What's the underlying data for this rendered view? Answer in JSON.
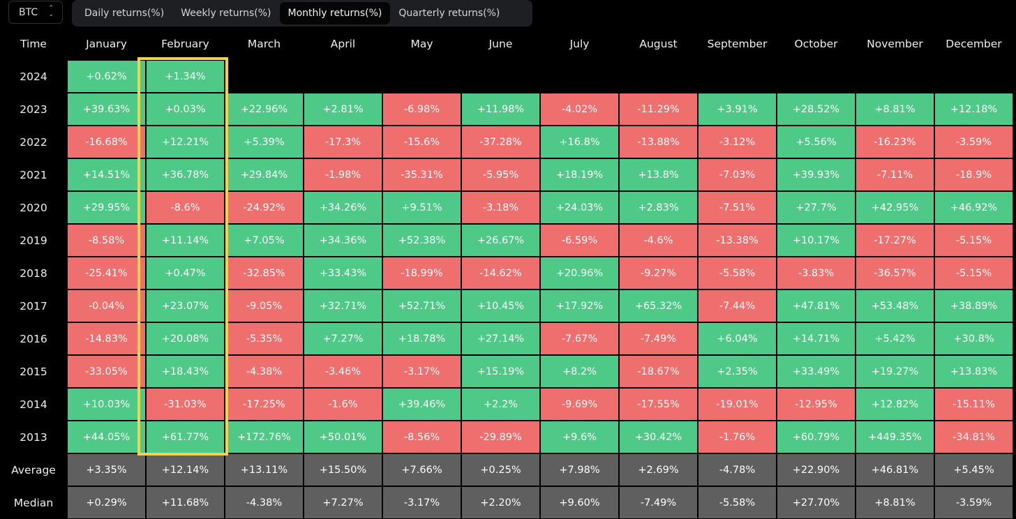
{
  "symbol_select": {
    "value": "BTC"
  },
  "tabs": [
    {
      "label": "Daily returns(%)",
      "active": false
    },
    {
      "label": "Weekly returns(%)",
      "active": false
    },
    {
      "label": "Monthly returns(%)",
      "active": true
    },
    {
      "label": "Quarterly returns(%)",
      "active": false
    }
  ],
  "table": {
    "time_header": "Time",
    "months": [
      "January",
      "February",
      "March",
      "April",
      "May",
      "June",
      "July",
      "August",
      "September",
      "October",
      "November",
      "December"
    ],
    "highlighted_month": "February",
    "rows": [
      {
        "year": "2024",
        "values": [
          "+0.62%",
          "+1.34%",
          "",
          "",
          "",
          "",
          "",
          "",
          "",
          "",
          "",
          ""
        ]
      },
      {
        "year": "2023",
        "values": [
          "+39.63%",
          "+0.03%",
          "+22.96%",
          "+2.81%",
          "-6.98%",
          "+11.98%",
          "-4.02%",
          "-11.29%",
          "+3.91%",
          "+28.52%",
          "+8.81%",
          "+12.18%"
        ]
      },
      {
        "year": "2022",
        "values": [
          "-16.68%",
          "+12.21%",
          "+5.39%",
          "-17.3%",
          "-15.6%",
          "-37.28%",
          "+16.8%",
          "-13.88%",
          "-3.12%",
          "+5.56%",
          "-16.23%",
          "-3.59%"
        ]
      },
      {
        "year": "2021",
        "values": [
          "+14.51%",
          "+36.78%",
          "+29.84%",
          "-1.98%",
          "-35.31%",
          "-5.95%",
          "+18.19%",
          "+13.8%",
          "-7.03%",
          "+39.93%",
          "-7.11%",
          "-18.9%"
        ]
      },
      {
        "year": "2020",
        "values": [
          "+29.95%",
          "-8.6%",
          "-24.92%",
          "+34.26%",
          "+9.51%",
          "-3.18%",
          "+24.03%",
          "+2.83%",
          "-7.51%",
          "+27.7%",
          "+42.95%",
          "+46.92%"
        ]
      },
      {
        "year": "2019",
        "values": [
          "-8.58%",
          "+11.14%",
          "+7.05%",
          "+34.36%",
          "+52.38%",
          "+26.67%",
          "-6.59%",
          "-4.6%",
          "-13.38%",
          "+10.17%",
          "-17.27%",
          "-5.15%"
        ]
      },
      {
        "year": "2018",
        "values": [
          "-25.41%",
          "+0.47%",
          "-32.85%",
          "+33.43%",
          "-18.99%",
          "-14.62%",
          "+20.96%",
          "-9.27%",
          "-5.58%",
          "-3.83%",
          "-36.57%",
          "-5.15%"
        ]
      },
      {
        "year": "2017",
        "values": [
          "-0.04%",
          "+23.07%",
          "-9.05%",
          "+32.71%",
          "+52.71%",
          "+10.45%",
          "+17.92%",
          "+65.32%",
          "-7.44%",
          "+47.81%",
          "+53.48%",
          "+38.89%"
        ]
      },
      {
        "year": "2016",
        "values": [
          "-14.83%",
          "+20.08%",
          "-5.35%",
          "+7.27%",
          "+18.78%",
          "+27.14%",
          "-7.67%",
          "-7.49%",
          "+6.04%",
          "+14.71%",
          "+5.42%",
          "+30.8%"
        ]
      },
      {
        "year": "2015",
        "values": [
          "-33.05%",
          "+18.43%",
          "-4.38%",
          "-3.46%",
          "-3.17%",
          "+15.19%",
          "+8.2%",
          "-18.67%",
          "+2.35%",
          "+33.49%",
          "+19.27%",
          "+13.83%"
        ]
      },
      {
        "year": "2014",
        "values": [
          "+10.03%",
          "-31.03%",
          "-17.25%",
          "-1.6%",
          "+39.46%",
          "+2.2%",
          "-9.69%",
          "-17.55%",
          "-19.01%",
          "-12.95%",
          "+12.82%",
          "-15.11%"
        ]
      },
      {
        "year": "2013",
        "values": [
          "+44.05%",
          "+61.77%",
          "+172.76%",
          "+50.01%",
          "-8.56%",
          "-29.89%",
          "+9.6%",
          "+30.42%",
          "-1.76%",
          "+60.79%",
          "+449.35%",
          "-34.81%"
        ]
      }
    ],
    "stats": [
      {
        "label": "Average",
        "values": [
          "+3.35%",
          "+12.14%",
          "+13.11%",
          "+15.50%",
          "+7.66%",
          "+0.25%",
          "+7.98%",
          "+2.69%",
          "-4.78%",
          "+22.90%",
          "+46.81%",
          "+5.45%"
        ]
      },
      {
        "label": "Median",
        "values": [
          "+0.29%",
          "+11.68%",
          "-4.38%",
          "+7.27%",
          "-3.17%",
          "+2.20%",
          "+9.60%",
          "-7.49%",
          "-5.58%",
          "+27.70%",
          "+8.81%",
          "-3.59%"
        ]
      }
    ]
  },
  "colors": {
    "positive": "#4fc987",
    "negative": "#ef6f6f",
    "stat": "#5f5f5f",
    "highlight": "#f3d34a"
  }
}
